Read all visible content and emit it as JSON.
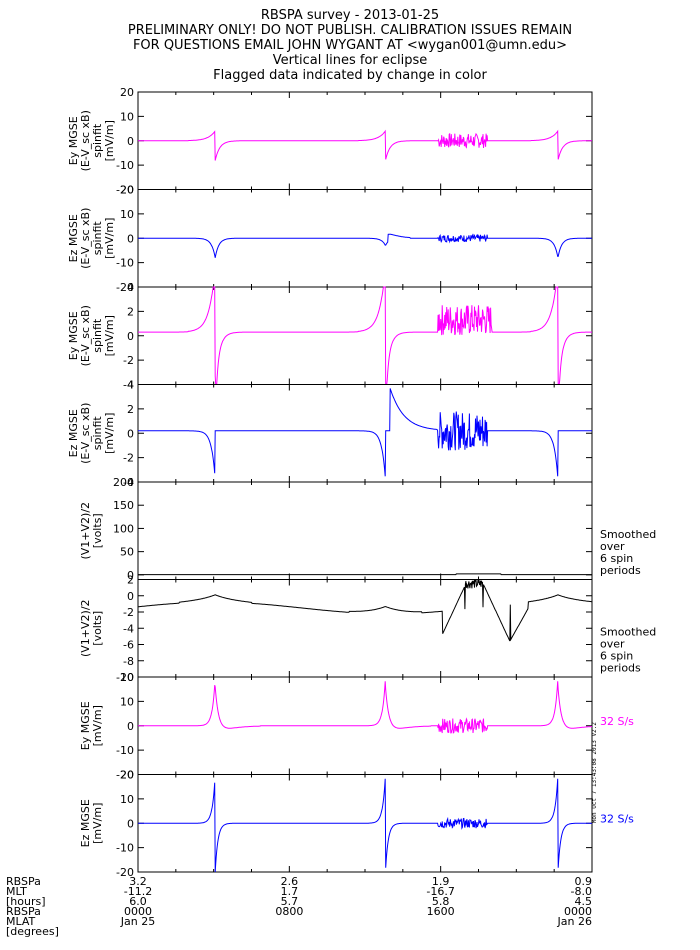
{
  "header": {
    "title": "RBSPA survey - 2013-01-25",
    "line2": "PRELIMINARY ONLY! DO NOT PUBLISH. CALIBRATION ISSUES REMAIN",
    "line3": "FOR QUESTIONS EMAIL JOHN WYGANT AT <wygan001@umn.edu>",
    "line4": "Vertical lines for eclipse",
    "line5": "Flagged data indicated by change in color"
  },
  "colors": {
    "magenta": "#ff00ff",
    "blue": "#0000ff",
    "black": "#000000"
  },
  "stamp": "Mon Oct  7 13:43:08 2013 V2.2",
  "chart_data": [
    {
      "type": "line",
      "ylabel": [
        "Ey MGSE",
        "(E-V_sc xB)",
        "spinfit",
        "[mV/m]"
      ],
      "ylim": [
        -20,
        20
      ],
      "yticks": [
        -20,
        -10,
        0,
        10,
        20
      ],
      "color": "magenta",
      "shape": "sw",
      "amp": 9,
      "side": ""
    },
    {
      "type": "line",
      "ylabel": [
        "Ez MGSE",
        "(E-V_sc xB)",
        "spinfit",
        "[mV/m]"
      ],
      "ylim": [
        -20,
        20
      ],
      "yticks": [
        -20,
        -10,
        0,
        10,
        20
      ],
      "color": "blue",
      "shape": "ezsmall",
      "amp": 4,
      "side": ""
    },
    {
      "type": "line",
      "ylabel": [
        "Ey MGSE",
        "(E-V_sc xB)",
        "spinfit",
        "[mV/m]"
      ],
      "ylim": [
        -4,
        4
      ],
      "yticks": [
        -4,
        -2,
        0,
        2,
        4
      ],
      "color": "magenta",
      "shape": "eyzoom",
      "amp": 4,
      "side": ""
    },
    {
      "type": "line",
      "ylabel": [
        "Ez MGSE",
        "(E-V_sc xB)",
        "spinfit",
        "[mV/m]"
      ],
      "ylim": [
        -4,
        4
      ],
      "yticks": [
        -4,
        -2,
        0,
        2,
        4
      ],
      "color": "blue",
      "shape": "ezzoom",
      "amp": 4,
      "side": ""
    },
    {
      "type": "line",
      "ylabel": [
        "(V1+V2)/2",
        "[volts]"
      ],
      "ylim": [
        -10,
        200
      ],
      "yticks": [
        0,
        50,
        100,
        150,
        200
      ],
      "color": "black",
      "shape": "flat",
      "amp": 0,
      "side": [
        "Smoothed",
        "over",
        "6 spin",
        "periods"
      ]
    },
    {
      "type": "line",
      "ylabel": [
        "(V1+V2)/2",
        "[volts]"
      ],
      "ylim": [
        -10,
        2
      ],
      "yticks": [
        -10,
        -8,
        -6,
        -4,
        -2,
        0,
        2
      ],
      "color": "black",
      "shape": "vsc",
      "amp": 0,
      "side": [
        "Smoothed",
        "over",
        "6 spin",
        "periods"
      ]
    },
    {
      "type": "line",
      "ylabel": [
        "Ey MGSE",
        "[mV/m]"
      ],
      "ylim": [
        -20,
        20
      ],
      "yticks": [
        -20,
        -10,
        0,
        10,
        20
      ],
      "color": "magenta",
      "shape": "spikeup",
      "amp": 20,
      "side": [
        "32 S/s"
      ]
    },
    {
      "type": "line",
      "ylabel": [
        "Ez MGSE",
        "[mV/m]"
      ],
      "ylim": [
        -20,
        20
      ],
      "yticks": [
        -20,
        -10,
        0,
        10,
        20
      ],
      "color": "blue",
      "shape": "spikeboth",
      "amp": 20,
      "side": [
        "32 S/s"
      ]
    }
  ],
  "ephemeris": {
    "labels": [
      "RBSPa",
      "MLT",
      "[hours]",
      "RBSPa",
      "MLAT",
      "[degrees]"
    ],
    "columns": [
      {
        "mlt": "3.2",
        "mlat": "-11.2",
        "lshell": "6.0",
        "time": "0000",
        "date": "Jan 25"
      },
      {
        "mlt": "2.6",
        "mlat": "1.7",
        "lshell": "5.7",
        "time": "0800",
        "date": ""
      },
      {
        "mlt": "1.9",
        "mlat": "-16.7",
        "lshell": "5.8",
        "time": "1600",
        "date": ""
      },
      {
        "mlt": "0.9",
        "mlat": "-8.0",
        "lshell": "4.5",
        "time": "0000",
        "date": "Jan 26"
      }
    ]
  }
}
